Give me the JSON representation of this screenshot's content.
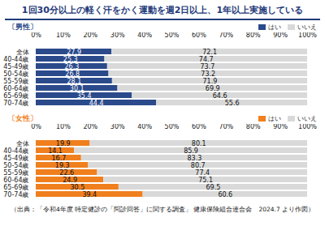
{
  "title": "1回30分以上の軽く汗をかく運動を週2日以上、1年以上実施している",
  "chart_data": [
    {
      "type": "bar",
      "title": "〔男性〕",
      "orientation": "horizontal",
      "stacked": true,
      "data_labels": true,
      "legend": "top-right",
      "grid": false,
      "categories": [
        "全体",
        "40-44歳",
        "45-49歳",
        "50-54歳",
        "55-59歳",
        "60-64歳",
        "65-69歳",
        "70-74歳"
      ],
      "series": [
        {
          "name": "はい",
          "color": "#2b4a8b",
          "values": [
            27.9,
            25.3,
            26.3,
            26.8,
            28.1,
            30.1,
            35.4,
            44.4
          ]
        },
        {
          "name": "いいえ",
          "color": "#d9d9d9",
          "values": [
            72.1,
            74.7,
            73.7,
            73.2,
            71.9,
            69.9,
            64.6,
            55.6
          ]
        }
      ],
      "xlim": [
        0,
        100
      ],
      "xticks": [
        {
          "value": 0,
          "label": "0%"
        },
        {
          "value": 10,
          "label": "10%"
        },
        {
          "value": 20,
          "label": "20%"
        },
        {
          "value": 30,
          "label": "30%"
        },
        {
          "value": 40,
          "label": "40%"
        },
        {
          "value": 50,
          "label": "50%"
        },
        {
          "value": 60,
          "label": "60%"
        },
        {
          "value": 70,
          "label": "70%"
        },
        {
          "value": 80,
          "label": "80%"
        },
        {
          "value": 90,
          "label": "90%"
        },
        {
          "value": 100,
          "label": "100%"
        }
      ]
    },
    {
      "type": "bar",
      "title": "〔女性〕",
      "orientation": "horizontal",
      "stacked": true,
      "data_labels": true,
      "legend": "top-right",
      "grid": false,
      "categories": [
        "全体",
        "40-44歳",
        "45-49歳",
        "50-54歳",
        "55-59歳",
        "60-64歳",
        "65-69歳",
        "70-74歳"
      ],
      "series": [
        {
          "name": "はい",
          "color": "#f07f1e",
          "values": [
            19.9,
            14.1,
            16.7,
            19.3,
            22.6,
            24.9,
            30.5,
            39.4
          ]
        },
        {
          "name": "いいえ",
          "color": "#d9d9d9",
          "values": [
            80.1,
            85.9,
            83.3,
            80.7,
            77.4,
            75.1,
            69.5,
            60.6
          ]
        }
      ],
      "xlim": [
        0,
        100
      ],
      "xticks": [
        {
          "value": 0,
          "label": "0%"
        },
        {
          "value": 10,
          "label": "10%"
        },
        {
          "value": 20,
          "label": "20%"
        },
        {
          "value": 30,
          "label": "30%"
        },
        {
          "value": 40,
          "label": "40%"
        },
        {
          "value": 50,
          "label": "50%"
        },
        {
          "value": 60,
          "label": "60%"
        },
        {
          "value": 70,
          "label": "70%"
        },
        {
          "value": 80,
          "label": "80%"
        },
        {
          "value": 90,
          "label": "90%"
        },
        {
          "value": 100,
          "label": "100%"
        }
      ]
    }
  ],
  "caption": "（出典：「令和4年度 特定健診の「問診回答」に関する調査」 健康保険組合連合会　2024.7 より作図）"
}
